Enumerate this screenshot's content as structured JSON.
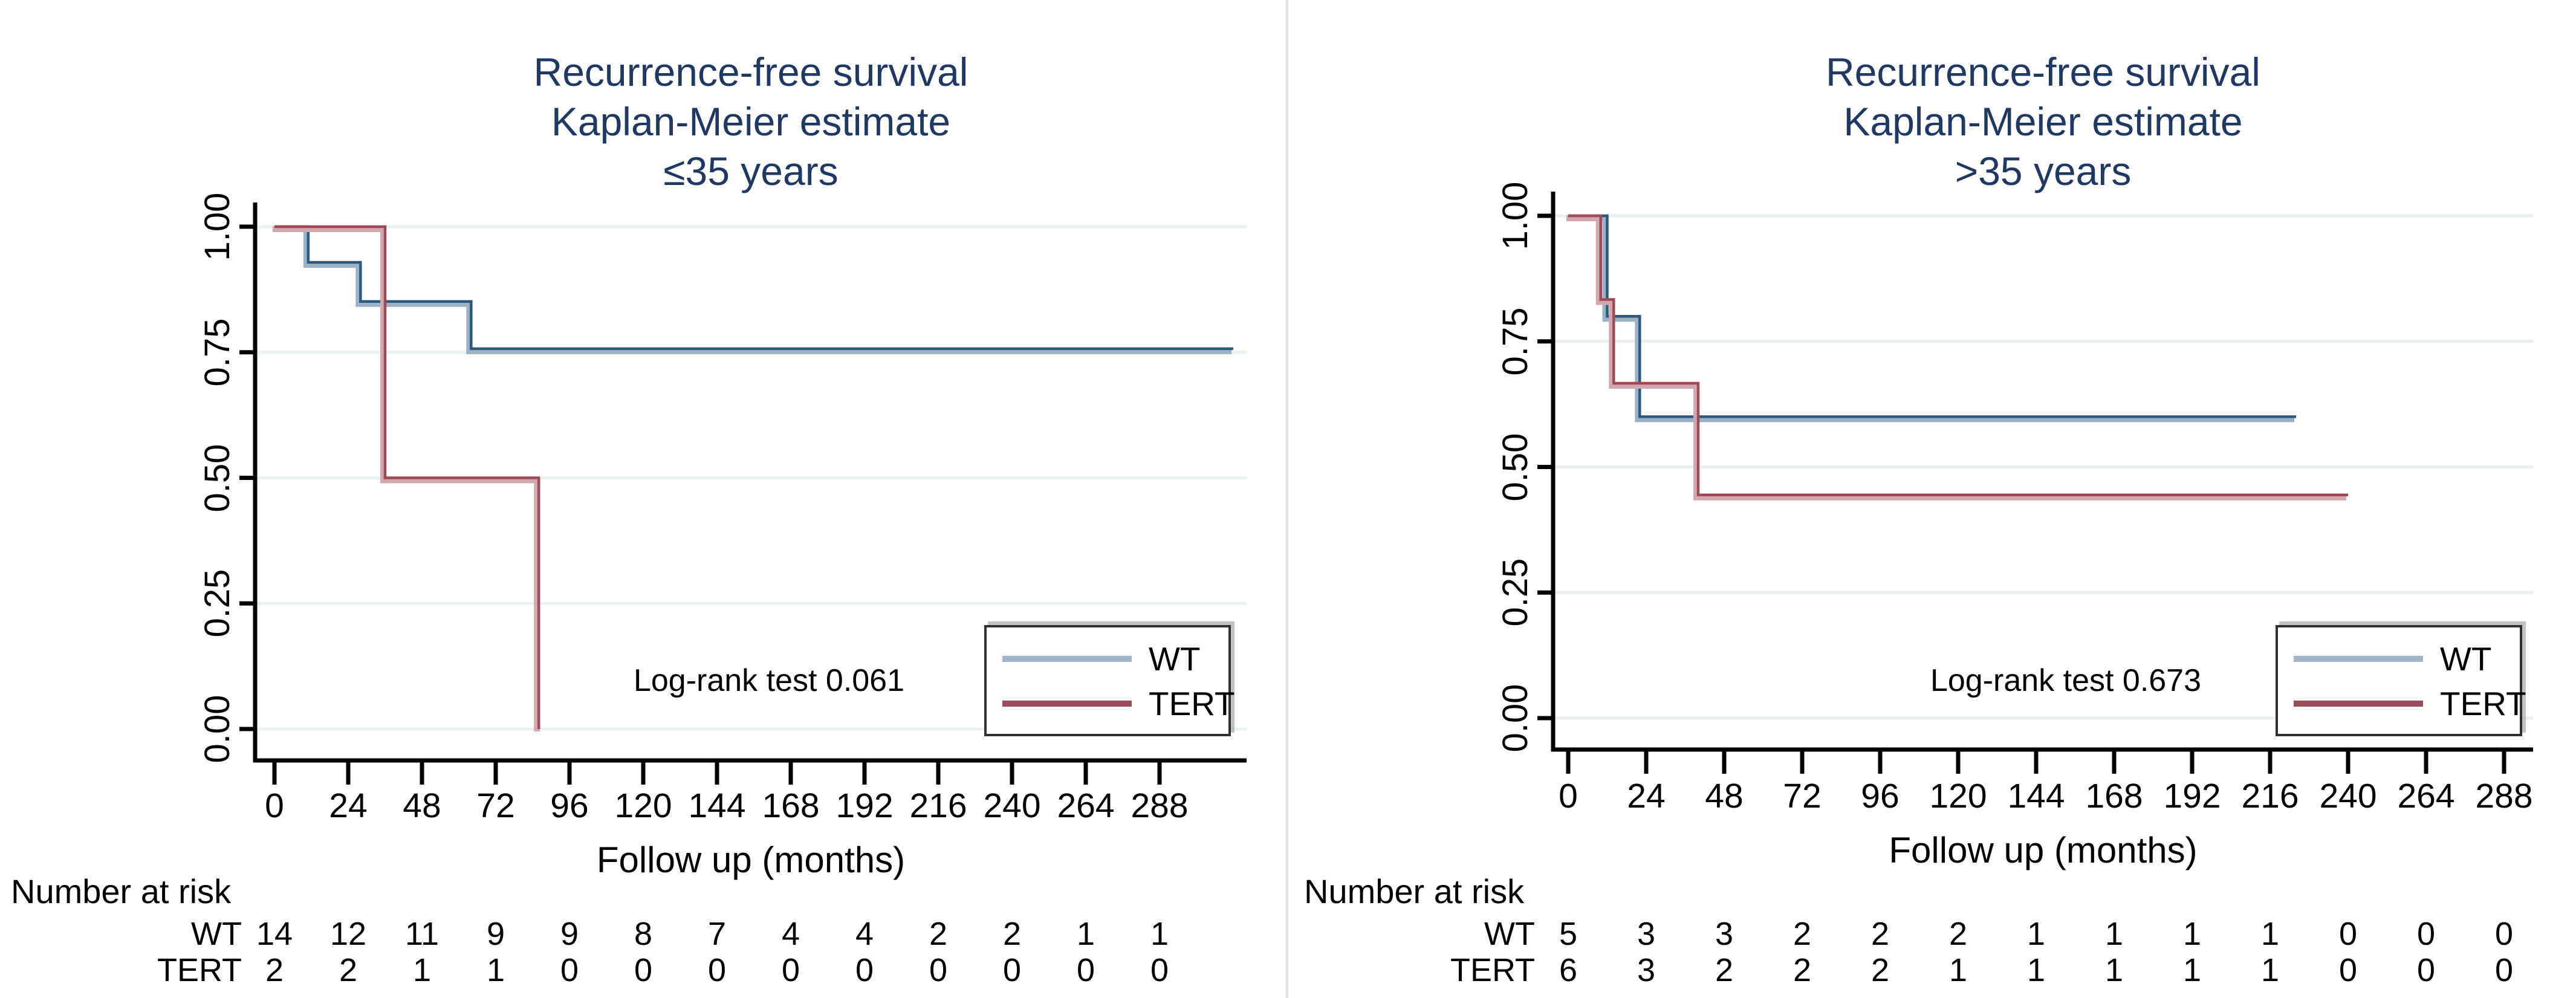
{
  "page": {
    "background": "#ffffff",
    "divider_color": "#e2e2e2",
    "title_color": "#1f3864",
    "grid_color": "#e9f1f0",
    "axis_color": "#000000"
  },
  "chart_data": [
    {
      "type": "line",
      "subtype": "kaplan-meier-step",
      "title_lines": [
        "Recurrence-free survival",
        "Kaplan-Meier estimate",
        "≤35 years"
      ],
      "annotation": "Log-rank test 0.061",
      "xlabel": "Follow up (months)",
      "ylabel": "",
      "x_ticks": [
        0,
        24,
        48,
        72,
        96,
        120,
        144,
        168,
        192,
        216,
        240,
        264,
        288
      ],
      "y_ticks": [
        "1.00",
        "0.75",
        "0.50",
        "0.25",
        "0.00"
      ],
      "xlim": [
        0,
        316
      ],
      "ylim": [
        0,
        1
      ],
      "grid": true,
      "legend_position": "inside-bottom-right",
      "series": [
        {
          "name": "WT",
          "color": "#2c5a7c",
          "halo": "#9cb0c6",
          "legend_color": "#a3b6c9",
          "points": [
            [
              0,
              1.0
            ],
            [
              11,
              1.0
            ],
            [
              11,
              0.929
            ],
            [
              28,
              0.929
            ],
            [
              28,
              0.851
            ],
            [
              64,
              0.851
            ],
            [
              64,
              0.757
            ],
            [
              312,
              0.757
            ]
          ]
        },
        {
          "name": "TERT",
          "color": "#9f4a57",
          "halo": "#d4a7af",
          "legend_color": "#9f4a57",
          "points": [
            [
              0,
              1.0
            ],
            [
              36,
              1.0
            ],
            [
              36,
              0.5
            ],
            [
              86,
              0.5
            ],
            [
              86,
              0.0
            ]
          ]
        }
      ],
      "number_at_risk": {
        "title": "Number at risk",
        "rows": [
          {
            "label": "WT",
            "values": [
              14,
              12,
              11,
              9,
              9,
              8,
              7,
              4,
              4,
              2,
              2,
              1,
              1
            ]
          },
          {
            "label": "TERT",
            "values": [
              2,
              2,
              1,
              1,
              0,
              0,
              0,
              0,
              0,
              0,
              0,
              0,
              0
            ]
          }
        ]
      }
    },
    {
      "type": "line",
      "subtype": "kaplan-meier-step",
      "title_lines": [
        "Recurrence-free survival",
        "Kaplan-Meier estimate",
        ">35 years"
      ],
      "annotation": "Log-rank test 0.673",
      "xlabel": "Follow up (months)",
      "ylabel": "",
      "x_ticks": [
        0,
        24,
        48,
        72,
        96,
        120,
        144,
        168,
        192,
        216,
        240,
        264,
        288
      ],
      "y_ticks": [
        "1.00",
        "0.75",
        "0.50",
        "0.25",
        "0.00"
      ],
      "xlim": [
        0,
        297
      ],
      "ylim": [
        0,
        1
      ],
      "grid": true,
      "legend_position": "inside-bottom-right",
      "series": [
        {
          "name": "WT",
          "color": "#2c5a7c",
          "halo": "#9cb0c6",
          "legend_color": "#a3b6c9",
          "points": [
            [
              0,
              1.0
            ],
            [
              12,
              1.0
            ],
            [
              12,
              0.8
            ],
            [
              22,
              0.8
            ],
            [
              22,
              0.6
            ],
            [
              224,
              0.6
            ]
          ]
        },
        {
          "name": "TERT",
          "color": "#9f4a57",
          "halo": "#d4a7af",
          "legend_color": "#9f4a57",
          "points": [
            [
              0,
              1.0
            ],
            [
              10,
              1.0
            ],
            [
              10,
              0.8333
            ],
            [
              14,
              0.8333
            ],
            [
              14,
              0.6667
            ],
            [
              40,
              0.6667
            ],
            [
              40,
              0.4444
            ],
            [
              240,
              0.4444
            ]
          ]
        }
      ],
      "number_at_risk": {
        "title": "Number at risk",
        "rows": [
          {
            "label": "WT",
            "values": [
              5,
              3,
              3,
              2,
              2,
              2,
              1,
              1,
              1,
              1,
              0,
              0,
              0
            ]
          },
          {
            "label": "TERT",
            "values": [
              6,
              3,
              2,
              2,
              2,
              1,
              1,
              1,
              1,
              1,
              0,
              0,
              0
            ]
          }
        ]
      }
    }
  ]
}
